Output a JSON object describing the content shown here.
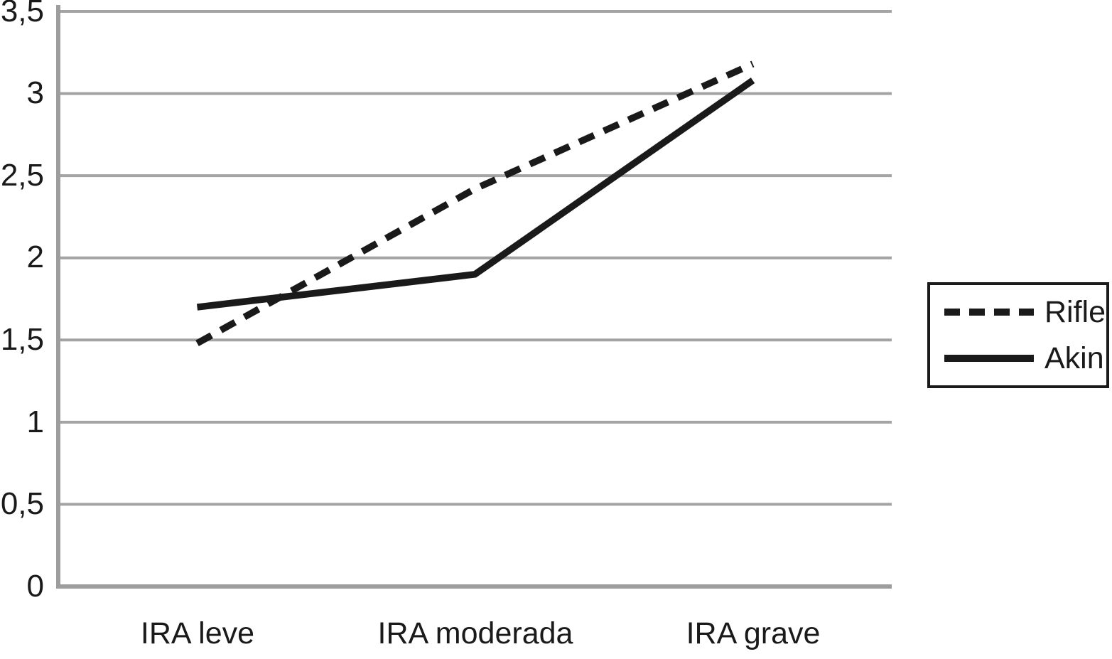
{
  "chart_data": {
    "type": "line",
    "title": "",
    "xlabel": "",
    "ylabel": "",
    "categories": [
      "IRA leve",
      "IRA moderada",
      "IRA grave"
    ],
    "series": [
      {
        "name": "Rifle",
        "style": "dashed",
        "values": [
          1.48,
          2.42,
          3.18
        ]
      },
      {
        "name": "Akin",
        "style": "solid",
        "values": [
          1.7,
          1.9,
          3.08
        ]
      }
    ],
    "ylim": [
      0,
      3.5
    ],
    "ytick_step": 0.5,
    "ytick_labels": [
      "0",
      "0,5",
      "1",
      "1,5",
      "2",
      "2,5",
      "3",
      "3,5"
    ],
    "decimal_separator": ",",
    "grid": true,
    "legend_position": "right",
    "colors": {
      "line": "#1a1a1a",
      "grid": "#a4a4a4",
      "axis": "#9d9d9d",
      "text": "#1a1a1a",
      "background": "#ffffff"
    }
  }
}
